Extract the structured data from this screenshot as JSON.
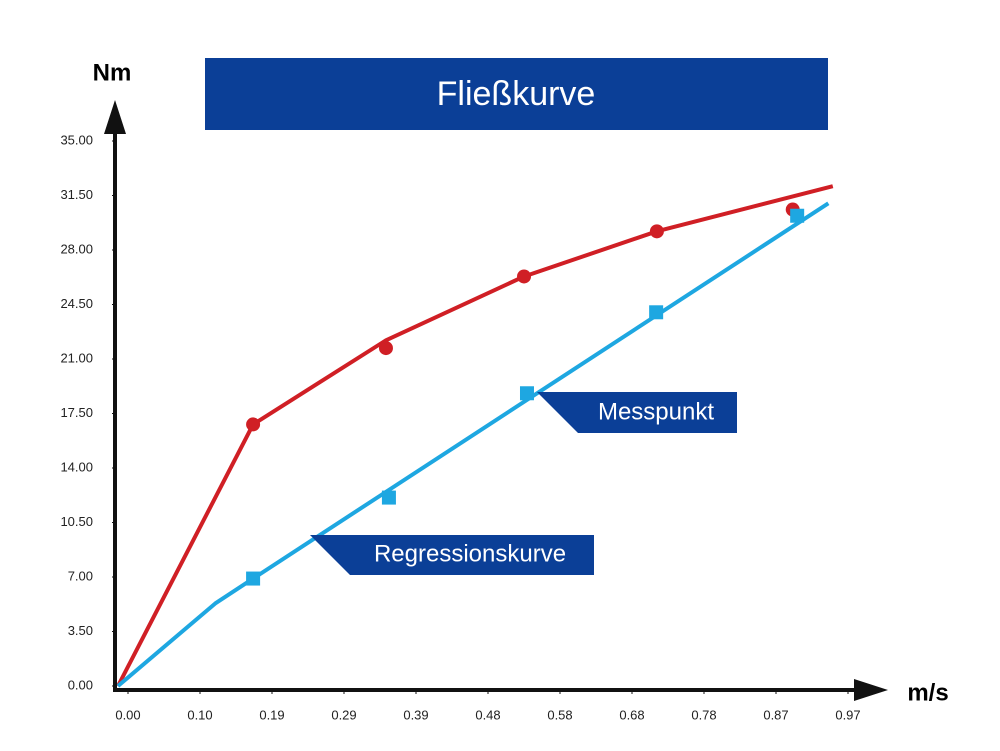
{
  "chart_data": {
    "type": "line",
    "title": "Fließkurve",
    "y_label": "Nm",
    "x_label": "m/s",
    "annotations": [
      "Messpunkt",
      "Regressionskurve"
    ],
    "xlim": [
      0,
      0.97
    ],
    "ylim": [
      0,
      35
    ],
    "xticks": [
      {
        "value": 0,
        "label": "0.00"
      },
      {
        "value": 0.097,
        "label": "0.10"
      },
      {
        "value": 0.194,
        "label": "0.19"
      },
      {
        "value": 0.291,
        "label": "0.29"
      },
      {
        "value": 0.388,
        "label": "0.39"
      },
      {
        "value": 0.485,
        "label": "0.48"
      },
      {
        "value": 0.582,
        "label": "0.58"
      },
      {
        "value": 0.679,
        "label": "0.68"
      },
      {
        "value": 0.776,
        "label": "0.78"
      },
      {
        "value": 0.873,
        "label": "0.87"
      },
      {
        "value": 0.97,
        "label": "0.97"
      }
    ],
    "yticks": [
      {
        "value": 0,
        "label": "0.00"
      },
      {
        "value": 3.5,
        "label": "3.50"
      },
      {
        "value": 7,
        "label": "7.00"
      },
      {
        "value": 10.5,
        "label": "10.50"
      },
      {
        "value": 14,
        "label": "14.00"
      },
      {
        "value": 17.5,
        "label": "17.50"
      },
      {
        "value": 21,
        "label": "21.00"
      },
      {
        "value": 24.5,
        "label": "24.50"
      },
      {
        "value": 28,
        "label": "28.00"
      },
      {
        "value": 31.5,
        "label": "31.50"
      },
      {
        "value": 35,
        "label": "35.00"
      }
    ],
    "series": [
      {
        "color": "#d01f25",
        "x": [
          0,
          0.182,
          0.361,
          0.547,
          0.726,
          0.963
        ],
        "values": [
          0,
          16.8,
          22.2,
          26.3,
          29.2,
          32.1
        ]
      },
      {
        "color": "#1ea7e1",
        "x": [
          0,
          0.131,
          0.182,
          0.957
        ],
        "values": [
          0,
          5.3,
          6.9,
          31.0
        ]
      }
    ],
    "points": [
      {
        "color": "#d01f25",
        "marker": "circle",
        "x": [
          0.182,
          0.361,
          0.547,
          0.726,
          0.909
        ],
        "values": [
          16.8,
          21.7,
          26.3,
          29.2,
          30.6
        ]
      },
      {
        "color": "#1ea7e1",
        "marker": "square",
        "x": [
          0.182,
          0.365,
          0.551,
          0.725,
          0.915
        ],
        "values": [
          6.9,
          12.1,
          18.8,
          24.0,
          30.2
        ]
      }
    ]
  }
}
